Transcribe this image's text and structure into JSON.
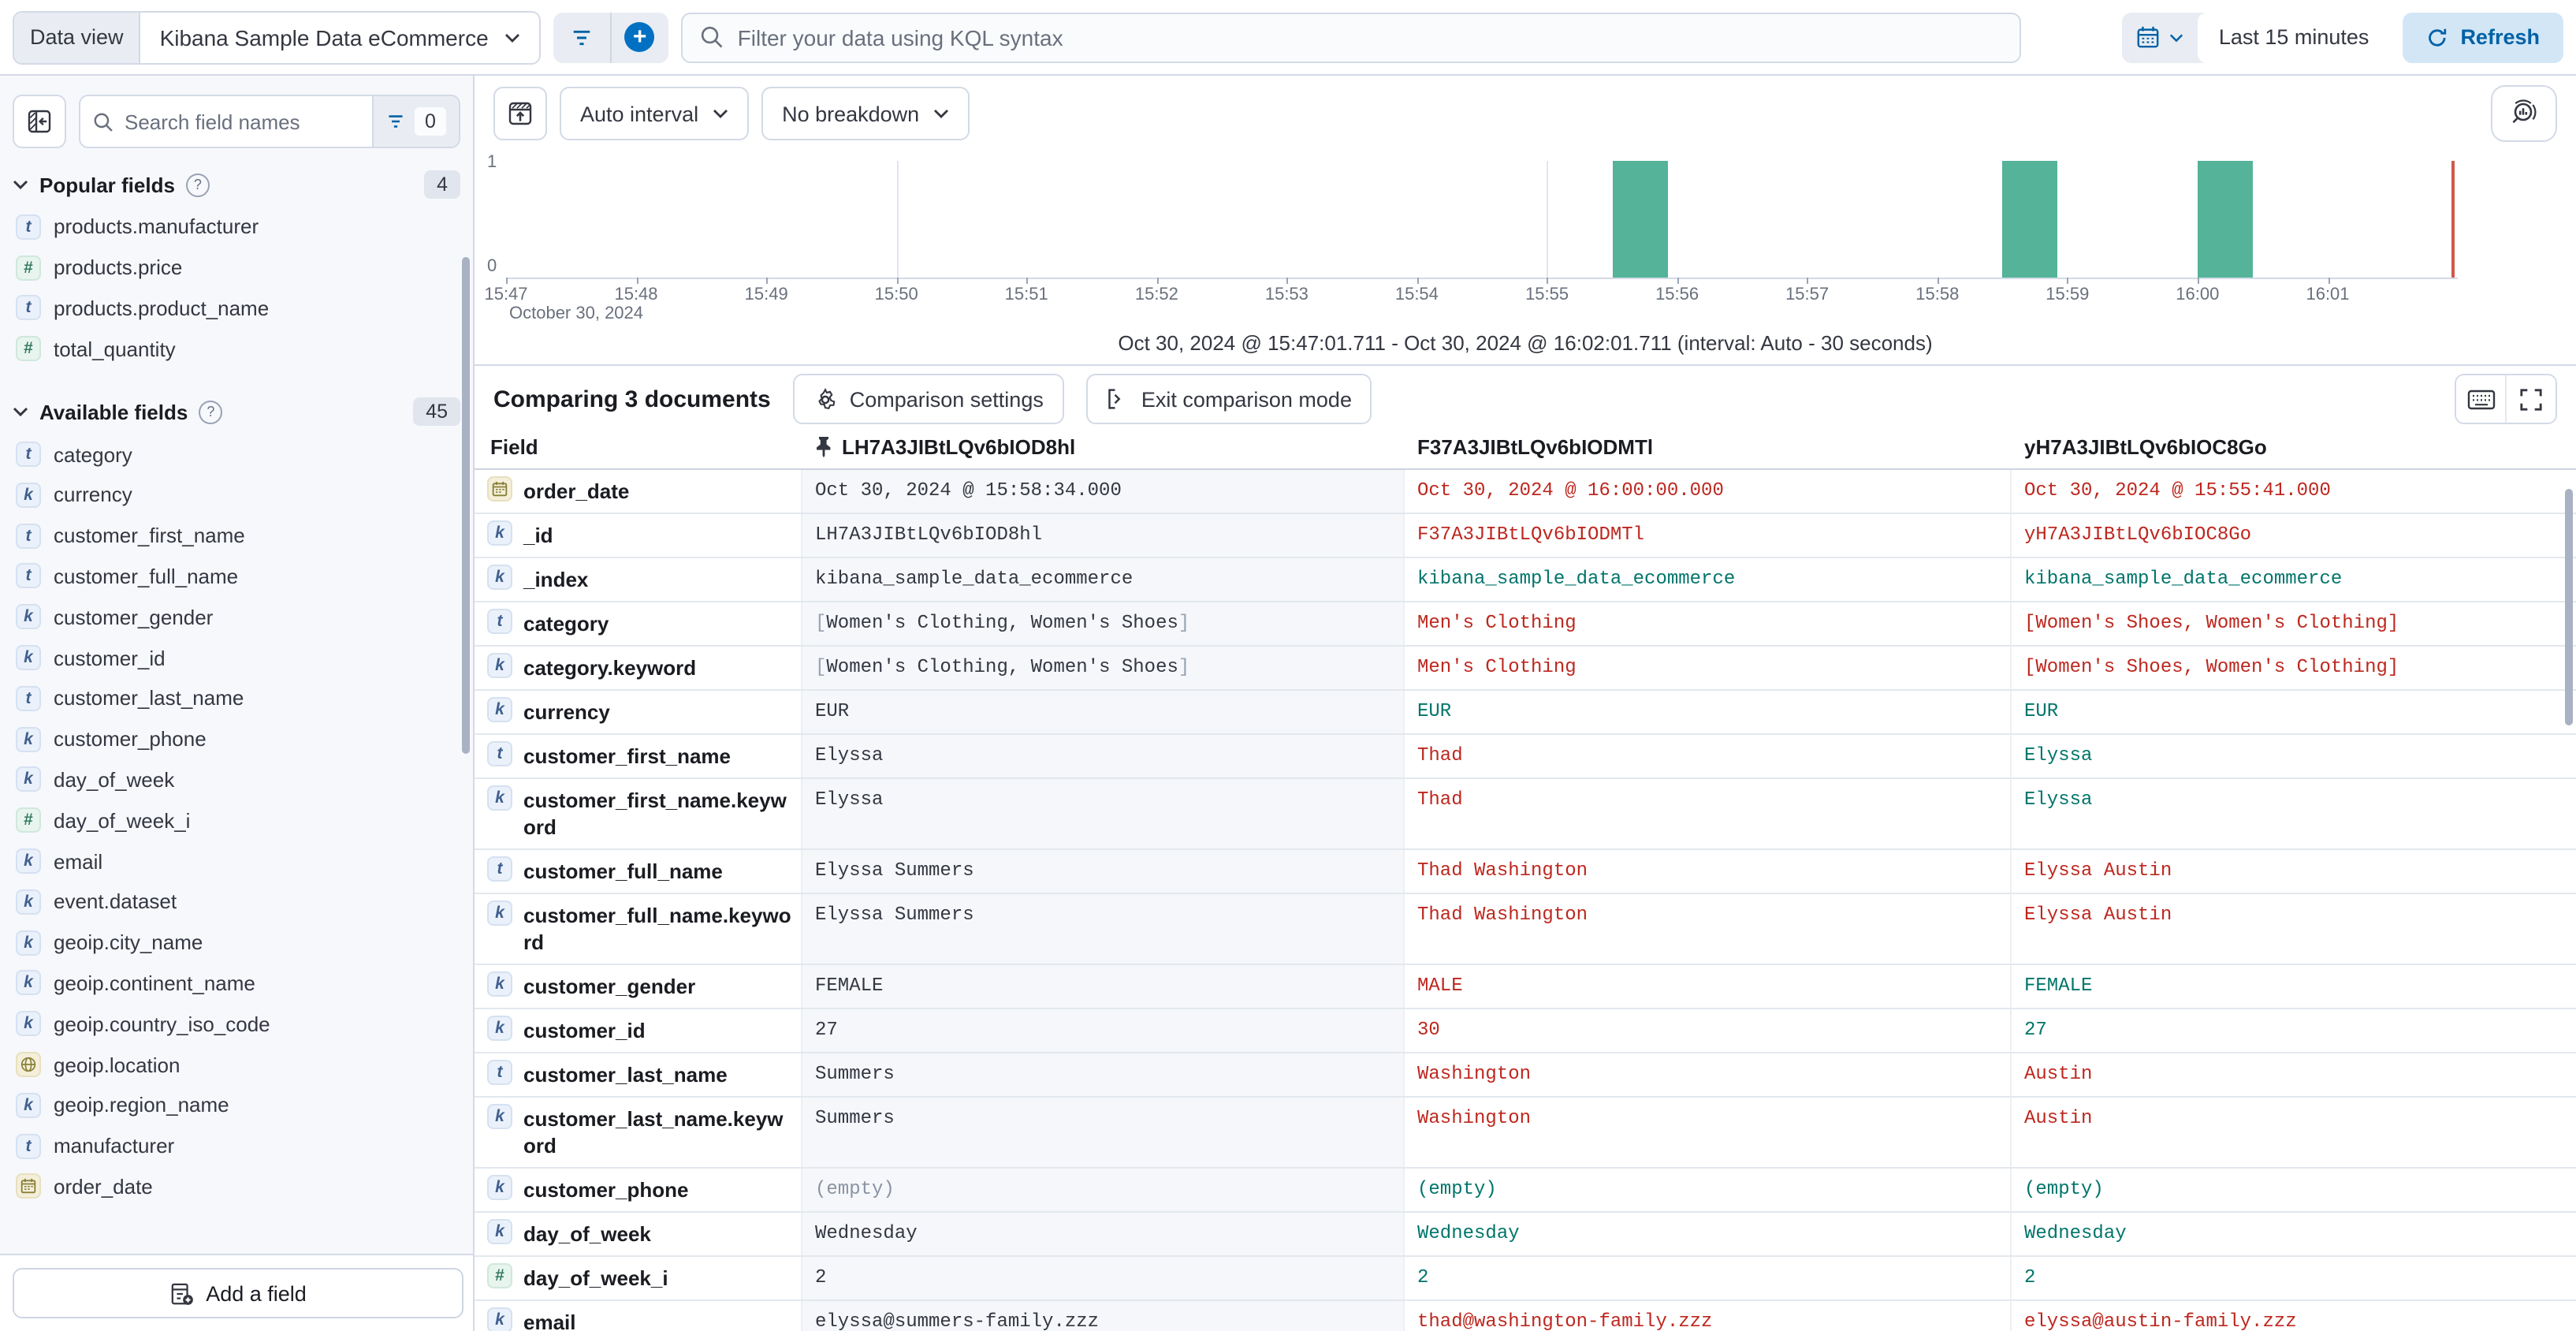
{
  "topbar": {
    "data_view_label": "Data view",
    "data_view_value": "Kibana Sample Data eCommerce",
    "kql_placeholder": "Filter your data using KQL syntax",
    "time_range": "Last 15 minutes",
    "refresh_label": "Refresh"
  },
  "sidebar": {
    "search_placeholder": "Search field names",
    "filter_count": "0",
    "popular_title": "Popular fields",
    "popular_count": "4",
    "popular_items": [
      {
        "type": "t",
        "label": "products.manufacturer"
      },
      {
        "type": "num",
        "label": "products.price"
      },
      {
        "type": "t",
        "label": "products.product_name"
      },
      {
        "type": "num",
        "label": "total_quantity"
      }
    ],
    "available_title": "Available fields",
    "available_count": "45",
    "available_items": [
      {
        "type": "t",
        "label": "category"
      },
      {
        "type": "k",
        "label": "currency"
      },
      {
        "type": "t",
        "label": "customer_first_name"
      },
      {
        "type": "t",
        "label": "customer_full_name"
      },
      {
        "type": "k",
        "label": "customer_gender"
      },
      {
        "type": "k",
        "label": "customer_id"
      },
      {
        "type": "t",
        "label": "customer_last_name"
      },
      {
        "type": "k",
        "label": "customer_phone"
      },
      {
        "type": "k",
        "label": "day_of_week"
      },
      {
        "type": "num",
        "label": "day_of_week_i"
      },
      {
        "type": "k",
        "label": "email"
      },
      {
        "type": "k",
        "label": "event.dataset"
      },
      {
        "type": "k",
        "label": "geoip.city_name"
      },
      {
        "type": "k",
        "label": "geoip.continent_name"
      },
      {
        "type": "k",
        "label": "geoip.country_iso_code"
      },
      {
        "type": "geo",
        "label": "geoip.location"
      },
      {
        "type": "k",
        "label": "geoip.region_name"
      },
      {
        "type": "t",
        "label": "manufacturer"
      },
      {
        "type": "date",
        "label": "order_date"
      }
    ],
    "add_field_label": "Add a field"
  },
  "chart": {
    "interval_label": "Auto interval",
    "breakdown_label": "No breakdown",
    "footer": "Oct 30, 2024 @ 15:47:01.711 - Oct 30, 2024 @ 16:02:01.711 (interval: Auto - 30 seconds)"
  },
  "chart_data": {
    "type": "bar",
    "title": "Document count histogram",
    "x_ticks": [
      "15:47",
      "15:48",
      "15:49",
      "15:50",
      "15:51",
      "15:52",
      "15:53",
      "15:54",
      "15:55",
      "15:56",
      "15:57",
      "15:58",
      "15:59",
      "16:00",
      "16:01"
    ],
    "x_date_label": "October 30, 2024",
    "y_ticks": [
      "1",
      "0"
    ],
    "ylim": [
      0,
      1
    ],
    "minutes_span": 15,
    "interval_seconds": 30,
    "bars": [
      {
        "time": "15:55:30",
        "offset_min": 8.5,
        "value": 1
      },
      {
        "time": "15:58:30",
        "offset_min": 11.5,
        "value": 1
      },
      {
        "time": "16:00:00",
        "offset_min": 13,
        "value": 1
      }
    ],
    "gridlines_min": [
      3,
      8,
      13
    ],
    "now_min": 14.95,
    "bar_color": "#54b399",
    "now_line_color": "#d0584d"
  },
  "comparison": {
    "title": "Comparing 3 documents",
    "settings_label": "Comparison settings",
    "exit_label": "Exit comparison mode",
    "field_header": "Field",
    "doc_headers": [
      "LH7A3JIBtLQv6bIOD8hl",
      "F37A3JIBtLQv6bIODMTl",
      "yH7A3JIBtLQv6bIOC8Go"
    ],
    "diff_color": "#bd271e",
    "same_color": "#00756b",
    "rows": [
      {
        "field": "order_date",
        "icon": "date",
        "base": "Oct 30, 2024 @ 15:58:34.000",
        "docs": [
          {
            "v": "Oct 30, 2024 @ 16:00:00.000",
            "s": "diff"
          },
          {
            "v": "Oct 30, 2024 @ 15:55:41.000",
            "s": "diff"
          }
        ]
      },
      {
        "field": "_id",
        "icon": "k",
        "base": "LH7A3JIBtLQv6bIOD8hl",
        "docs": [
          {
            "v": "F37A3JIBtLQv6bIODMTl",
            "s": "diff"
          },
          {
            "v": "yH7A3JIBtLQv6bIOC8Go",
            "s": "diff"
          }
        ]
      },
      {
        "field": "_index",
        "icon": "k",
        "base": "kibana_sample_data_ecommerce",
        "docs": [
          {
            "v": "kibana_sample_data_ecommerce",
            "s": "same"
          },
          {
            "v": "kibana_sample_data_ecommerce",
            "s": "same"
          }
        ]
      },
      {
        "field": "category",
        "icon": "t",
        "base": "[Women's Clothing, Women's Shoes]",
        "docs": [
          {
            "v": "Men's Clothing",
            "s": "diff"
          },
          {
            "v": "[Women's Shoes, Women's Clothing]",
            "s": "diff"
          }
        ]
      },
      {
        "field": "category.keyword",
        "icon": "k",
        "base": "[Women's Clothing, Women's Shoes]",
        "docs": [
          {
            "v": "Men's Clothing",
            "s": "diff"
          },
          {
            "v": "[Women's Shoes, Women's Clothing]",
            "s": "diff"
          }
        ]
      },
      {
        "field": "currency",
        "icon": "k",
        "base": "EUR",
        "docs": [
          {
            "v": "EUR",
            "s": "same"
          },
          {
            "v": "EUR",
            "s": "same"
          }
        ]
      },
      {
        "field": "customer_first_name",
        "icon": "t",
        "base": "Elyssa",
        "docs": [
          {
            "v": "Thad",
            "s": "diff"
          },
          {
            "v": "Elyssa",
            "s": "same"
          }
        ]
      },
      {
        "field": "customer_first_name.keyword",
        "icon": "k",
        "base": "Elyssa",
        "docs": [
          {
            "v": "Thad",
            "s": "diff"
          },
          {
            "v": "Elyssa",
            "s": "same"
          }
        ]
      },
      {
        "field": "customer_full_name",
        "icon": "t",
        "base": "Elyssa Summers",
        "docs": [
          {
            "v": "Thad Washington",
            "s": "diff"
          },
          {
            "v": "Elyssa Austin",
            "s": "diff"
          }
        ]
      },
      {
        "field": "customer_full_name.keyword",
        "icon": "k",
        "base": "Elyssa Summers",
        "docs": [
          {
            "v": "Thad Washington",
            "s": "diff"
          },
          {
            "v": "Elyssa Austin",
            "s": "diff"
          }
        ]
      },
      {
        "field": "customer_gender",
        "icon": "k",
        "base": "FEMALE",
        "docs": [
          {
            "v": "MALE",
            "s": "diff"
          },
          {
            "v": "FEMALE",
            "s": "same"
          }
        ]
      },
      {
        "field": "customer_id",
        "icon": "k",
        "base": "27",
        "docs": [
          {
            "v": "30",
            "s": "diff"
          },
          {
            "v": "27",
            "s": "same"
          }
        ]
      },
      {
        "field": "customer_last_name",
        "icon": "t",
        "base": "Summers",
        "docs": [
          {
            "v": "Washington",
            "s": "diff"
          },
          {
            "v": "Austin",
            "s": "diff"
          }
        ]
      },
      {
        "field": "customer_last_name.keyword",
        "icon": "k",
        "base": "Summers",
        "docs": [
          {
            "v": "Washington",
            "s": "diff"
          },
          {
            "v": "Austin",
            "s": "diff"
          }
        ]
      },
      {
        "field": "customer_phone",
        "icon": "k",
        "base": "(empty)",
        "docs": [
          {
            "v": "(empty)",
            "s": "same"
          },
          {
            "v": "(empty)",
            "s": "same"
          }
        ]
      },
      {
        "field": "day_of_week",
        "icon": "k",
        "base": "Wednesday",
        "docs": [
          {
            "v": "Wednesday",
            "s": "same"
          },
          {
            "v": "Wednesday",
            "s": "same"
          }
        ]
      },
      {
        "field": "day_of_week_i",
        "icon": "num",
        "base": "2",
        "docs": [
          {
            "v": "2",
            "s": "same"
          },
          {
            "v": "2",
            "s": "same"
          }
        ]
      },
      {
        "field": "email",
        "icon": "k",
        "base": "elyssa@summers-family.zzz",
        "docs": [
          {
            "v": "thad@washington-family.zzz",
            "s": "diff"
          },
          {
            "v": "elyssa@austin-family.zzz",
            "s": "diff"
          }
        ]
      }
    ]
  }
}
